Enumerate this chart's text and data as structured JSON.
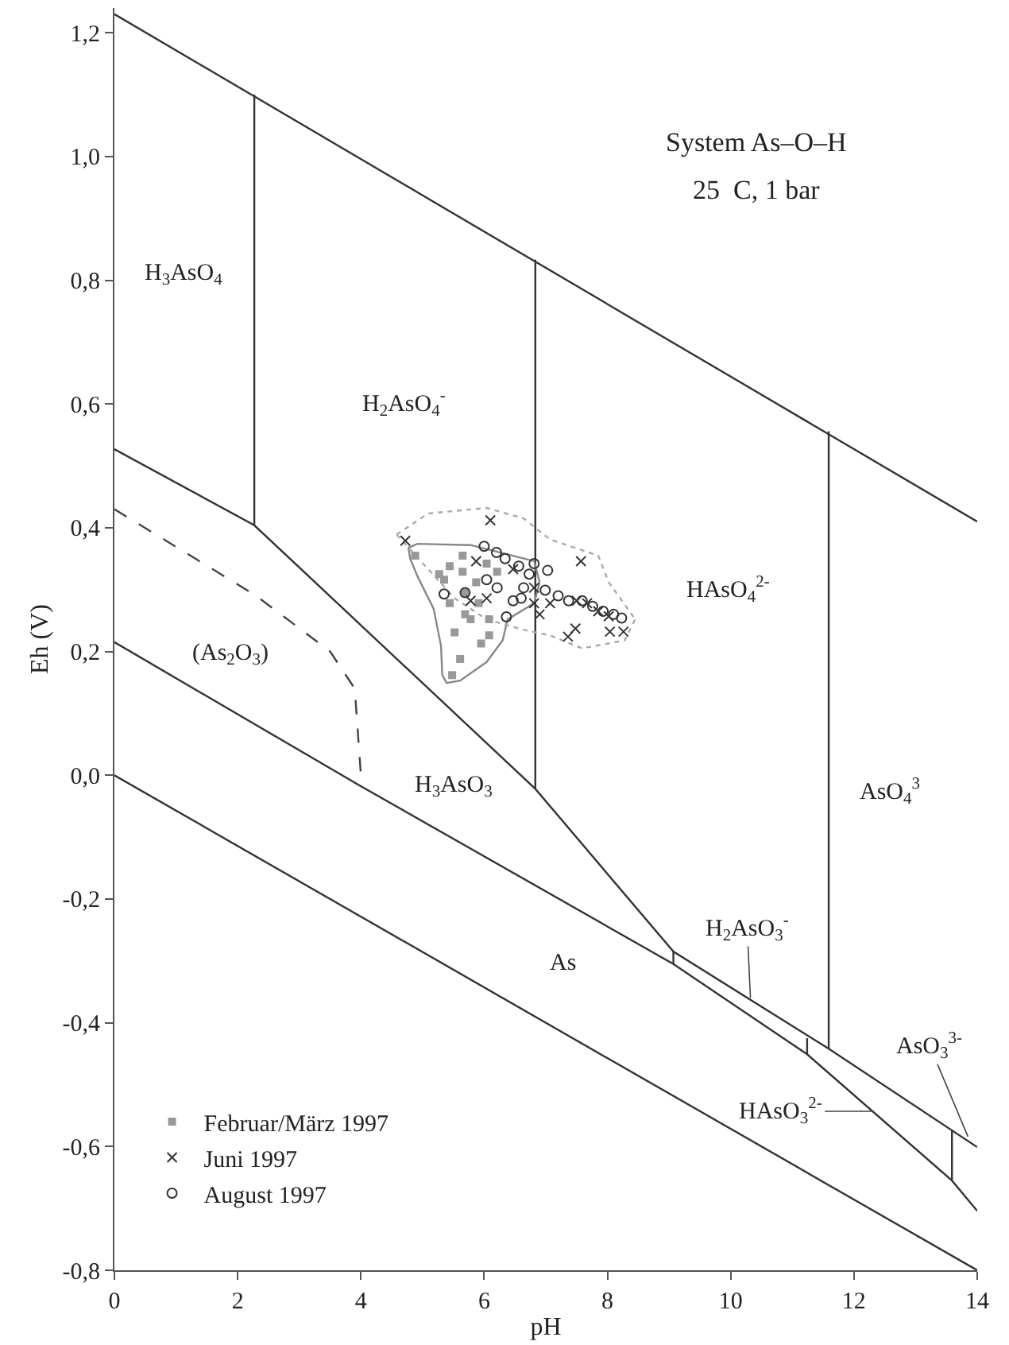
{
  "chart_data": {
    "type": "line",
    "xlabel": "pH",
    "ylabel": "Eh (V)",
    "xlim": [
      0,
      14
    ],
    "ylim": [
      -0.8,
      1.24
    ],
    "xticks": [
      0,
      2,
      4,
      6,
      8,
      10,
      12,
      14
    ],
    "yticks": [
      {
        "value": -0.8,
        "label": "-0,8"
      },
      {
        "value": -0.6,
        "label": "-0,6"
      },
      {
        "value": -0.4,
        "label": "-0,4"
      },
      {
        "value": -0.2,
        "label": "-0,2"
      },
      {
        "value": 0,
        "label": "0,0"
      },
      {
        "value": 0.2,
        "label": "0,2"
      },
      {
        "value": 0.4,
        "label": "0,4"
      },
      {
        "value": 0.6,
        "label": "0,6"
      },
      {
        "value": 0.8,
        "label": "0,8"
      },
      {
        "value": 1.0,
        "label": "1,0"
      },
      {
        "value": 1.2,
        "label": "1,2"
      }
    ],
    "legend": "bottom left",
    "series": [
      {
        "color": "#333333",
        "x": [
          0,
          14
        ],
        "values": [
          1.23,
          0.41
        ]
      },
      {
        "color": "#333333",
        "x": [
          0,
          14
        ],
        "values": [
          0,
          -0.8
        ]
      },
      {
        "color": "#333333",
        "x": [
          2.27,
          2.27
        ],
        "values": [
          1.1,
          0.404
        ]
      },
      {
        "color": "#333333",
        "x": [
          6.83,
          6.83
        ],
        "values": [
          0.833,
          -0.022
        ]
      },
      {
        "color": "#333333",
        "x": [
          11.59,
          11.59
        ],
        "values": [
          0.556,
          -0.442
        ]
      },
      {
        "color": "#333333",
        "x": [
          0,
          2.27,
          6.83,
          9.07,
          11.59,
          14
        ],
        "values": [
          0.527,
          0.404,
          -0.022,
          -0.285,
          -0.442,
          -0.601
        ]
      },
      {
        "color": "#333333",
        "x": [
          0,
          3.97,
          9.07,
          11.24,
          13.59,
          14
        ],
        "values": [
          0.215,
          -0.016,
          -0.305,
          -0.451,
          -0.655,
          -0.704
        ]
      },
      {
        "color": "#333333",
        "x": [
          9.07,
          9.07
        ],
        "values": [
          -0.285,
          -0.305
        ]
      },
      {
        "color": "#333333",
        "x": [
          11.24,
          11.24
        ],
        "values": [
          -0.425,
          -0.451
        ]
      },
      {
        "color": "#333333",
        "x": [
          13.59,
          13.59
        ],
        "values": [
          -0.573,
          -0.655
        ]
      },
      {
        "color": "#444444",
        "line_style": "dashed",
        "x": [
          0,
          2.3,
          3.5,
          3.9,
          4.0
        ],
        "values": [
          0.43,
          0.29,
          0.2,
          0.14,
          0.0
        ]
      },
      {
        "color": "#888888",
        "x": [
          4.77,
          4.92,
          5.78,
          6.3,
          6.81,
          6.9
        ],
        "values": [
          0.368,
          0.374,
          0.372,
          0.359,
          0.346,
          0.312
        ]
      },
      {
        "color": "#888888",
        "x": [
          4.77,
          4.8,
          4.92,
          5.18,
          5.3,
          5.32,
          5.39,
          5.61,
          6.04,
          6.3,
          6.38,
          6.81,
          6.9
        ],
        "values": [
          0.368,
          0.35,
          0.321,
          0.269,
          0.209,
          0.162,
          0.149,
          0.153,
          0.183,
          0.218,
          0.252,
          0.278,
          0.312
        ]
      },
      {
        "color": "#aaaaaa",
        "line_style": "dotted",
        "x": [
          4.58,
          5.09,
          6.04,
          6.64,
          7.07,
          7.85,
          8.02,
          8.45
        ],
        "values": [
          0.389,
          0.423,
          0.432,
          0.415,
          0.381,
          0.355,
          0.312,
          0.252
        ]
      },
      {
        "color": "#aaaaaa",
        "line_style": "dotted",
        "x": [
          4.58,
          5.52,
          6.04,
          6.64,
          7.07,
          7.59,
          8.28,
          8.45
        ],
        "values": [
          0.389,
          0.286,
          0.252,
          0.235,
          0.226,
          0.205,
          0.218,
          0.252
        ]
      },
      {
        "type": "scatter",
        "name": "Februar/März 1997",
        "color": "#999999",
        "marker": "square",
        "x": [
          4.88,
          5.27,
          5.44,
          5.65,
          5.65,
          5.69,
          5.69,
          5.87,
          5.91,
          6.08,
          6.08,
          5.52,
          5.61,
          5.48,
          6.04,
          6.21,
          5.44,
          5.78,
          5.35,
          5.95
        ],
        "values": [
          0.355,
          0.325,
          0.338,
          0.355,
          0.329,
          0.295,
          0.26,
          0.312,
          0.278,
          0.252,
          0.226,
          0.231,
          0.188,
          0.162,
          0.342,
          0.329,
          0.278,
          0.252,
          0.316,
          0.213
        ]
      },
      {
        "type": "scatter",
        "name": "Juni 1997",
        "color": "#333333",
        "marker": "cross",
        "x": [
          4.72,
          6.1,
          7.57,
          7.36,
          7.48,
          8.04,
          8.26,
          5.78,
          5.87,
          6.81,
          6.9,
          7.07,
          7.67,
          7.85,
          8.02,
          6.81,
          6.04,
          6.47,
          7.5
        ],
        "values": [
          0.379,
          0.412,
          0.346,
          0.224,
          0.237,
          0.232,
          0.232,
          0.282,
          0.346,
          0.303,
          0.26,
          0.278,
          0.278,
          0.265,
          0.257,
          0.278,
          0.286,
          0.333,
          0.282
        ]
      },
      {
        "type": "scatter",
        "name": "August 1997",
        "color": "#333333",
        "marker": "circle",
        "x": [
          5.35,
          6.36,
          6.34,
          6.56,
          6.81,
          7.03,
          6.64,
          6.47,
          6.21,
          7.37,
          7.59,
          7.76,
          7.93,
          8.1,
          8.23,
          7.2,
          6.99,
          6.73,
          6.04,
          5.69,
          6.6,
          6.0,
          6.2
        ],
        "values": [
          0.293,
          0.256,
          0.35,
          0.338,
          0.342,
          0.331,
          0.303,
          0.282,
          0.303,
          0.282,
          0.282,
          0.273,
          0.265,
          0.26,
          0.254,
          0.29,
          0.299,
          0.325,
          0.316,
          0.295,
          0.286,
          0.37,
          0.36
        ]
      }
    ],
    "annotations": [
      "System As–O–H",
      "25  C, 1 bar",
      "H$_{3}$AsO$_{4}$",
      "H$_{2}$AsO$_{4}$$^{-}$",
      "(As$_{2}$O$_{3}$)",
      "H$_{3}$AsO$_{3}$",
      "HAsO$_{4}$$^{2-}$",
      "AsO$_{4}$$^{3}$",
      "As",
      {
        "text": "H$_{2}$AsO$_{3}$$^{-}$",
        "x": 10.32,
        "y": -0.36
      },
      {
        "text": "HAsO$_{3}$$^{2-}$",
        "x": 12.3,
        "y": -0.543
      },
      {
        "text": "AsO$_{3}$$^{3-}$",
        "x": 13.85,
        "y": -0.584
      }
    ]
  }
}
